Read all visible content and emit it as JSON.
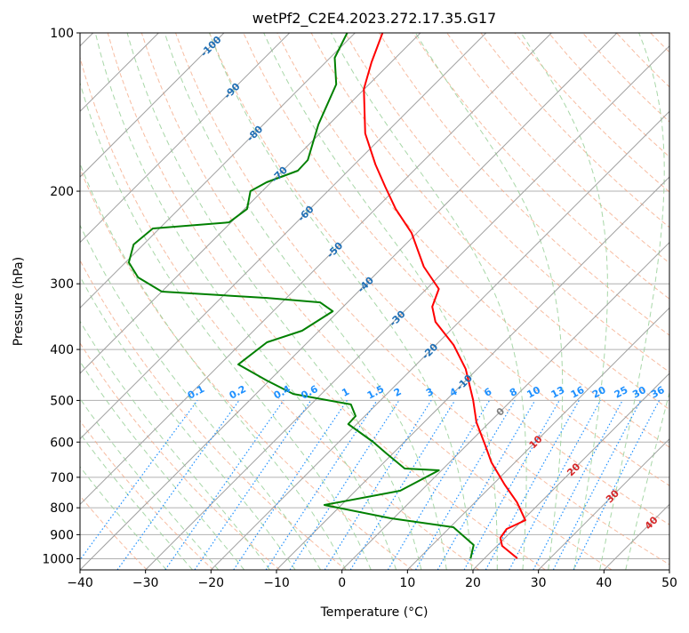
{
  "chart_data": {
    "type": "line",
    "subtype": "skew-t log-p",
    "title": "wetPf2_C2E4.2023.272.17.35.G17",
    "xlabel": "Temperature (°C)",
    "ylabel": "Pressure (hPa)",
    "xlim": [
      -40,
      50
    ],
    "ylim": [
      1050,
      100
    ],
    "x_ticks": [
      -40,
      -30,
      -20,
      -10,
      0,
      10,
      20,
      30,
      40,
      50
    ],
    "y_ticks": [
      100,
      200,
      300,
      400,
      500,
      600,
      700,
      800,
      900,
      1000
    ],
    "grid": true,
    "isotherm_labels": [
      -100,
      -90,
      -80,
      -70,
      -60,
      -50,
      -40,
      -30,
      -20,
      -10,
      0,
      10,
      20,
      30,
      40
    ],
    "mixing_ratio_labels": [
      "0.1",
      "0.2",
      "0.4",
      "0.6",
      "1",
      "1.5",
      "2",
      "3",
      "4",
      "6",
      "8",
      "10",
      "13",
      "16",
      "20",
      "25",
      "30",
      "36"
    ],
    "colors": {
      "temperature": "#ff0000",
      "dewpoint": "#008000",
      "isotherm": "#a0a0a0",
      "dry_adiabat": "#f4a582",
      "moist_adiabat": "#9fd39f",
      "mixing_ratio": "#1e90ff",
      "cold_label": "#1f6fb5",
      "zero_label": "#808080",
      "warm_label": "#d62728"
    },
    "series": [
      {
        "name": "Temperature",
        "pressure": [
          100,
          113.7,
          127.8,
          155.3,
          177.9,
          196.1,
          216.2,
          240.2,
          278.4,
          306.9,
          331.7,
          354.4,
          392.1,
          435.5,
          499.1,
          550.2,
          606.5,
          655.7,
          722.6,
          780.9,
          844.5,
          877.9,
          912.7,
          945.4,
          998
        ],
        "values": [
          -75.8,
          -73.0,
          -70.1,
          -63.1,
          -56.8,
          -51.9,
          -46.9,
          -40.8,
          -33.8,
          -28.1,
          -26.4,
          -23.6,
          -17.3,
          -11.8,
          -5.9,
          -2.0,
          2.7,
          6.4,
          11.8,
          16.4,
          20.4,
          18.9,
          19.3,
          20.8,
          25.0
        ]
      },
      {
        "name": "Dewpoint",
        "pressure": [
          100,
          111.5,
          125.3,
          149.4,
          174.5,
          182.8,
          192.3,
          200,
          216.2,
          229.2,
          235.5,
          252.6,
          273.1,
          291.7,
          310.5,
          319.1,
          325.4,
          338.3,
          368.5,
          387.6,
          427.1,
          458.2,
          485.9,
          508.9,
          535.5,
          554.6,
          599.5,
          630.6,
          673.8,
          679,
          742.5,
          790.2,
          837.9,
          871,
          941.5,
          999
        ],
        "values": [
          -81.2,
          -79.3,
          -75.0,
          -71.6,
          -67.8,
          -67.7,
          -70.7,
          -71.8,
          -69.6,
          -70.3,
          -81.0,
          -81.5,
          -79.5,
          -75.8,
          -70.0,
          -53.0,
          -44.2,
          -40.9,
          -42.6,
          -46.2,
          -47.2,
          -40.4,
          -34.3,
          -23.9,
          -21.4,
          -21.3,
          -14.8,
          -11.0,
          -5.9,
          -0.4,
          -3.2,
          -12.6,
          -0.4,
          10.5,
          16.3,
          17.9
        ]
      }
    ]
  }
}
